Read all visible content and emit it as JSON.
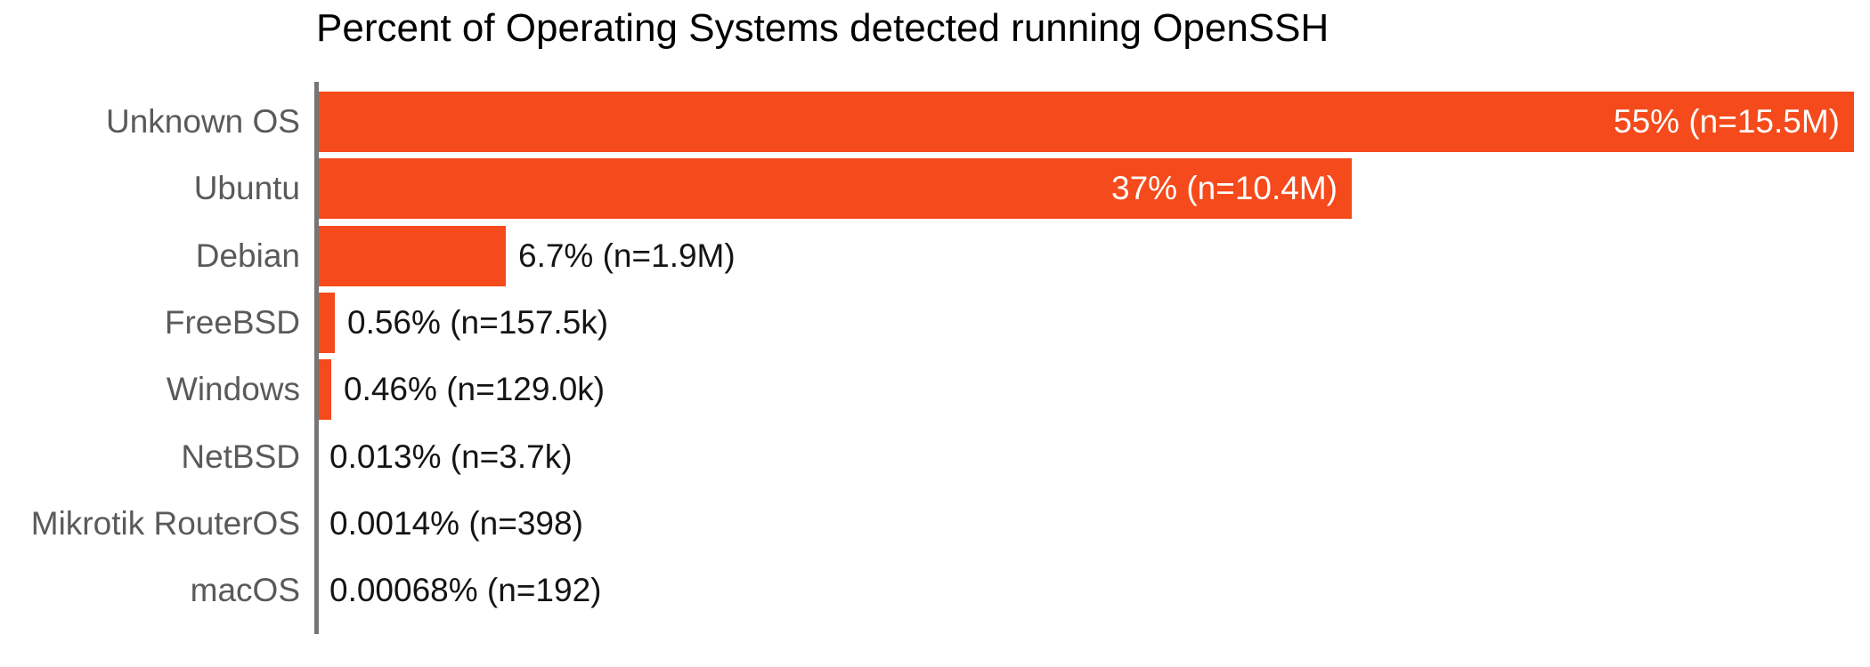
{
  "chart_data": {
    "type": "bar",
    "orientation": "horizontal",
    "title": "Percent of Operating Systems detected running OpenSSH",
    "categories": [
      "Unknown OS",
      "Ubuntu",
      "Debian",
      "FreeBSD",
      "Windows",
      "NetBSD",
      "Mikrotik RouterOS",
      "macOS"
    ],
    "values_percent": [
      55,
      37,
      6.7,
      0.56,
      0.46,
      0.013,
      0.0014,
      0.00068
    ],
    "counts": [
      "15.5M",
      "10.4M",
      "1.9M",
      "157.5k",
      "129.0k",
      "3.7k",
      "398",
      "192"
    ],
    "bar_labels": [
      "55% (n=15.5M)",
      "37% (n=10.4M)",
      "6.7% (n=1.9M)",
      "0.56% (n=157.5k)",
      "0.46% (n=129.0k)",
      "0.013% (n=3.7k)",
      "0.0014% (n=398)",
      "0.00068% (n=192)"
    ],
    "label_placement": [
      "inside",
      "inside",
      "outside",
      "outside",
      "outside",
      "outside",
      "outside",
      "outside"
    ],
    "xlabel": "",
    "ylabel": "",
    "xlim": [
      0,
      55
    ],
    "grid": false,
    "legend": null,
    "colors": {
      "bar": "#F54A1B",
      "axis_line": "#757575",
      "category_label": "#5A5A5A",
      "value_label_outside": "#141414",
      "value_label_inside": "#FFFFFF",
      "title": "#000000",
      "background": "#FFFFFF"
    }
  }
}
